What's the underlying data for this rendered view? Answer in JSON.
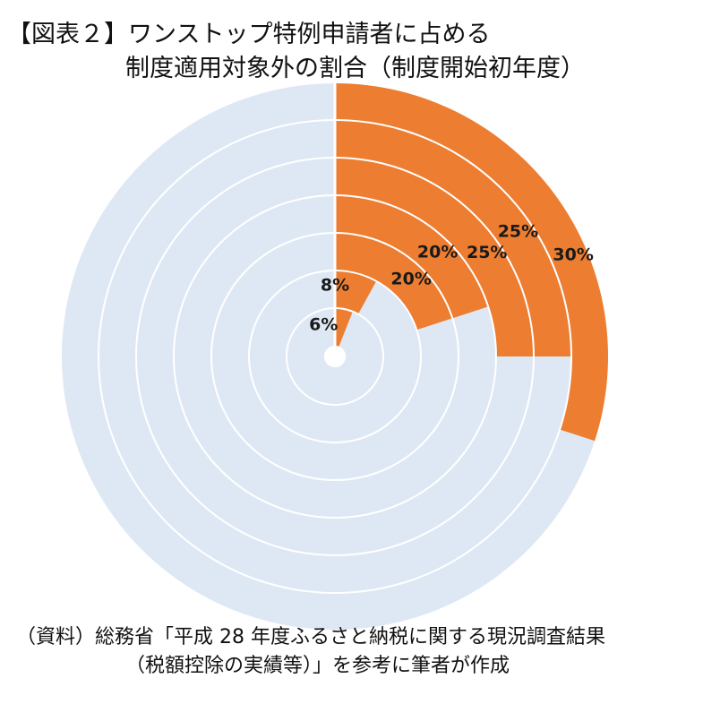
{
  "title": {
    "line1": "【図表２】ワンストップ特例申請者に占める",
    "line2": "制度適用対象外の割合（制度開始初年度）"
  },
  "source": {
    "line1": "（資料）総務省「平成 28 年度ふるさと納税に関する現況調査結果",
    "line2": "（税額控除の実績等）」を参考に筆者が作成"
  },
  "colors": {
    "highlight": "#ED7D31",
    "background_track": "#DEE8F4",
    "separator": "#ffffff"
  },
  "chart_data": {
    "type": "radial_bar",
    "title": "【図表２】ワンストップ特例申請者に占める制度適用対象外の割合（制度開始初年度）",
    "max": 100,
    "rings": [
      {
        "value": 6,
        "label": "6%"
      },
      {
        "value": 8,
        "label": "8%"
      },
      {
        "value": 20,
        "label": "20%"
      },
      {
        "value": 20,
        "label": "20%"
      },
      {
        "value": 25,
        "label": "25%"
      },
      {
        "value": 25,
        "label": "25%"
      },
      {
        "value": 30,
        "label": "30%"
      }
    ]
  }
}
